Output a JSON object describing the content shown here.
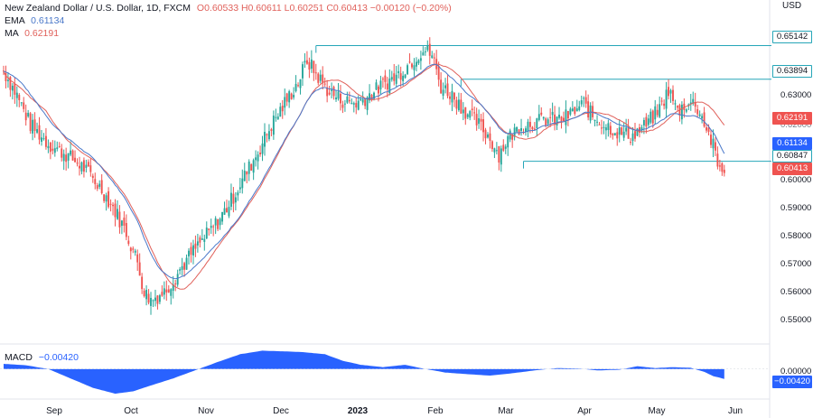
{
  "header": {
    "symbol": "New Zealand Dollar / U.S. Dollar, 1D, FXCM",
    "ohlc": "O0.60533 H0.60611 L0.60251 C0.60413 −0.00120 (−0.20%)",
    "ema_label": "EMA",
    "ema_value": "0.61134",
    "ma_label": "MA",
    "ma_value": "0.62191",
    "macd_label": "MACD",
    "macd_value": "−0.00420",
    "currency": "USD"
  },
  "colors": {
    "up": "#26a69a",
    "down": "#ef5350",
    "ema": "#4a78c9",
    "ma": "#e0605a",
    "levels": "#26a6b8",
    "macd_fill": "#2962ff"
  },
  "axis_badges": {
    "level1": "0.65142",
    "level2": "0.63894",
    "ma": "0.62191",
    "ema": "0.61134",
    "level3": "0.60847",
    "price": "0.60413",
    "macd_zero": "0.00000",
    "macd_value": "−0.00420"
  },
  "chart_data": {
    "type": "candlestick",
    "title": "New Zealand Dollar / U.S. Dollar, 1D, FXCM",
    "ylim": [
      0.545,
      0.664
    ],
    "y_ticks": [
      "0.63000",
      "0.62000",
      "0.60000",
      "0.59000",
      "0.58000",
      "0.57000",
      "0.56000",
      "0.55000"
    ],
    "x_ticks": [
      {
        "label": "Sep",
        "bold": false
      },
      {
        "label": "Oct",
        "bold": false
      },
      {
        "label": "Nov",
        "bold": false
      },
      {
        "label": "Dec",
        "bold": false
      },
      {
        "label": "2023",
        "bold": true
      },
      {
        "label": "Feb",
        "bold": false
      },
      {
        "label": "Mar",
        "bold": false
      },
      {
        "label": "Apr",
        "bold": false
      },
      {
        "label": "May",
        "bold": false
      },
      {
        "label": "Jun",
        "bold": false
      }
    ],
    "close_path": [
      [
        0,
        0.642
      ],
      [
        6,
        0.633
      ],
      [
        12,
        0.622
      ],
      [
        20,
        0.615
      ],
      [
        28,
        0.611
      ],
      [
        36,
        0.606
      ],
      [
        44,
        0.598
      ],
      [
        50,
        0.59
      ],
      [
        55,
        0.582
      ],
      [
        60,
        0.571
      ],
      [
        63,
        0.56
      ],
      [
        66,
        0.557
      ],
      [
        72,
        0.56
      ],
      [
        78,
        0.567
      ],
      [
        84,
        0.574
      ],
      [
        90,
        0.58
      ],
      [
        96,
        0.586
      ],
      [
        102,
        0.594
      ],
      [
        108,
        0.603
      ],
      [
        114,
        0.612
      ],
      [
        120,
        0.622
      ],
      [
        126,
        0.63
      ],
      [
        132,
        0.638
      ],
      [
        136,
        0.646
      ],
      [
        140,
        0.641
      ],
      [
        146,
        0.634
      ],
      [
        152,
        0.631
      ],
      [
        158,
        0.63
      ],
      [
        164,
        0.633
      ],
      [
        170,
        0.637
      ],
      [
        176,
        0.64
      ],
      [
        182,
        0.645
      ],
      [
        188,
        0.65
      ],
      [
        192,
        0.648
      ],
      [
        196,
        0.636
      ],
      [
        200,
        0.634
      ],
      [
        206,
        0.628
      ],
      [
        212,
        0.623
      ],
      [
        218,
        0.617
      ],
      [
        222,
        0.611
      ],
      [
        226,
        0.617
      ],
      [
        232,
        0.622
      ],
      [
        238,
        0.623
      ],
      [
        244,
        0.624
      ],
      [
        250,
        0.624
      ],
      [
        256,
        0.627
      ],
      [
        260,
        0.63
      ],
      [
        264,
        0.625
      ],
      [
        270,
        0.622
      ],
      [
        276,
        0.619
      ],
      [
        282,
        0.618
      ],
      [
        288,
        0.622
      ],
      [
        294,
        0.628
      ],
      [
        298,
        0.635
      ],
      [
        302,
        0.627
      ],
      [
        306,
        0.63
      ],
      [
        310,
        0.63
      ],
      [
        314,
        0.623
      ],
      [
        318,
        0.614
      ],
      [
        320,
        0.607
      ],
      [
        323,
        0.604
      ]
    ],
    "ema_value_last": 0.61134,
    "ma_value_last": 0.62191,
    "levels": [
      {
        "value": 0.65142
      },
      {
        "value": 0.63894
      },
      {
        "value": 0.60847
      }
    ],
    "macd": {
      "label": "MACD",
      "last": -0.0042,
      "ylim": [
        -0.012,
        0.0095
      ],
      "profile": [
        [
          0,
          0.0022
        ],
        [
          10,
          0.0016
        ],
        [
          20,
          0.0
        ],
        [
          30,
          -0.004
        ],
        [
          40,
          -0.008
        ],
        [
          50,
          -0.0105
        ],
        [
          58,
          -0.0095
        ],
        [
          66,
          -0.007
        ],
        [
          76,
          -0.004
        ],
        [
          86,
          -0.0005
        ],
        [
          96,
          0.003
        ],
        [
          106,
          0.0063
        ],
        [
          116,
          0.0078
        ],
        [
          126,
          0.0075
        ],
        [
          134,
          0.0072
        ],
        [
          144,
          0.0063
        ],
        [
          152,
          0.0035
        ],
        [
          160,
          0.0018
        ],
        [
          170,
          0.0008
        ],
        [
          180,
          0.0018
        ],
        [
          188,
          0.0002
        ],
        [
          198,
          -0.0015
        ],
        [
          208,
          -0.0022
        ],
        [
          218,
          -0.0028
        ],
        [
          228,
          -0.0018
        ],
        [
          238,
          -0.0006
        ],
        [
          248,
          0.0004
        ],
        [
          258,
          0.0002
        ],
        [
          266,
          -0.0006
        ],
        [
          276,
          -0.0003
        ],
        [
          284,
          0.0012
        ],
        [
          292,
          0.0004
        ],
        [
          300,
          0.0008
        ],
        [
          308,
          0.0005
        ],
        [
          314,
          -0.0012
        ],
        [
          318,
          -0.003
        ],
        [
          323,
          -0.0042
        ]
      ]
    }
  }
}
